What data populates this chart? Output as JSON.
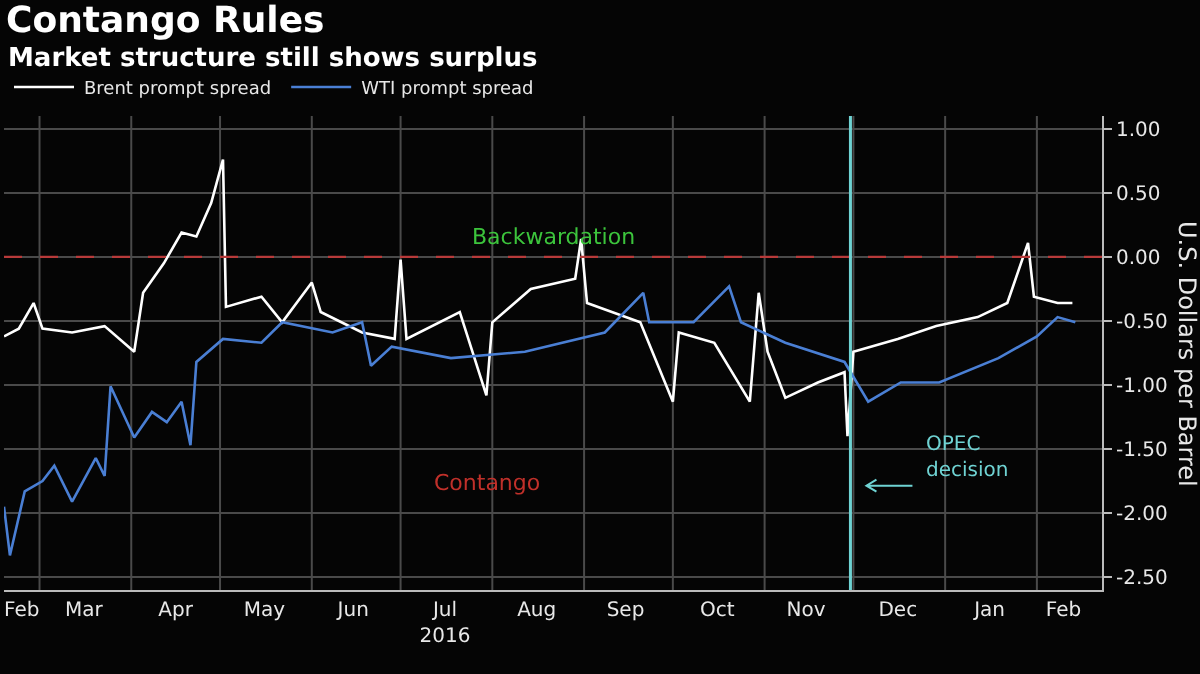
{
  "chart_data": {
    "type": "line",
    "title": "Contango Rules",
    "subtitle": "Market structure still shows surplus",
    "ylabel": "U.S. Dollars per Barrel",
    "annotations": [
      "Backwardation",
      "Contango"
    ],
    "xlim": [
      "2016-02-18",
      "2017-02-23"
    ],
    "xticks": [
      {
        "value": "2016-02-24",
        "label": "Feb"
      },
      {
        "value": "2016-03-01",
        "label": null
      },
      {
        "value": "2016-03-16",
        "label": "Mar"
      },
      {
        "value": "2016-04-01",
        "label": null
      },
      {
        "value": "2016-04-16",
        "label": "Apr"
      },
      {
        "value": "2016-05-01",
        "label": null
      },
      {
        "value": "2016-05-16",
        "label": "May"
      },
      {
        "value": "2016-06-01",
        "label": null
      },
      {
        "value": "2016-06-15",
        "label": "Jun"
      },
      {
        "value": "2016-07-01",
        "label": null
      },
      {
        "value": "2016-07-16",
        "label": "Jul\n2016"
      },
      {
        "value": "2016-08-01",
        "label": null
      },
      {
        "value": "2016-08-16",
        "label": "Aug"
      },
      {
        "value": "2016-09-01",
        "label": null
      },
      {
        "value": "2016-09-15",
        "label": "Sep"
      },
      {
        "value": "2016-10-01",
        "label": null
      },
      {
        "value": "2016-10-16",
        "label": "Oct"
      },
      {
        "value": "2016-11-01",
        "label": null
      },
      {
        "value": "2016-11-15",
        "label": "Nov"
      },
      {
        "value": "2016-12-01",
        "label": null
      },
      {
        "value": "2016-12-16",
        "label": "Dec"
      },
      {
        "value": "2017-01-01",
        "label": null
      },
      {
        "value": "2017-01-16",
        "label": "Jan"
      },
      {
        "value": "2017-02-01",
        "label": null
      },
      {
        "value": "2017-02-10",
        "label": "Feb"
      }
    ],
    "ylim": [
      -2.6,
      1.1
    ],
    "yticks": [
      {
        "value": 1,
        "label": "1.00"
      },
      {
        "value": 0.5,
        "label": "0.50"
      },
      {
        "value": 0,
        "label": "0.00"
      },
      {
        "value": -0.5,
        "label": "-0.50"
      },
      {
        "value": -1,
        "label": "-1.00"
      },
      {
        "value": -1.5,
        "label": "-1.50"
      },
      {
        "value": -2,
        "label": "-2.00"
      },
      {
        "value": -2.5,
        "label": "-2.50"
      }
    ],
    "grid": true,
    "legend": "top left",
    "marker": "none",
    "line_style": "solid",
    "ref_lines": [
      {
        "axis": "y",
        "value": 0,
        "color": "#b83a3a",
        "line_style": "dashed"
      },
      {
        "axis": "x",
        "value": "2016-11-30",
        "label": "OPEC\ndecision",
        "color": "#6fd3d3"
      }
    ],
    "series": [
      {
        "name": "Brent prompt spread",
        "color": "#ffffff",
        "x": [
          "2016-02-18",
          "2016-02-23",
          "2016-02-28",
          "2016-03-02",
          "2016-03-12",
          "2016-03-23",
          "2016-04-02",
          "2016-04-05",
          "2016-04-12",
          "2016-04-18",
          "2016-04-23",
          "2016-04-28",
          "2016-05-02",
          "2016-05-03",
          "2016-05-15",
          "2016-05-22",
          "2016-06-01",
          "2016-06-04",
          "2016-06-18",
          "2016-06-29",
          "2016-07-01",
          "2016-07-03",
          "2016-07-21",
          "2016-07-30",
          "2016-08-01",
          "2016-08-14",
          "2016-08-29",
          "2016-08-31",
          "2016-09-02",
          "2016-09-20",
          "2016-10-01",
          "2016-10-03",
          "2016-10-15",
          "2016-10-27",
          "2016-10-30",
          "2016-11-02",
          "2016-11-08",
          "2016-11-19",
          "2016-11-28",
          "2016-11-29",
          "2016-12-01",
          "2016-12-16",
          "2016-12-29",
          "2017-01-12",
          "2017-01-22",
          "2017-01-29",
          "2017-01-31",
          "2017-02-08",
          "2017-02-13"
        ],
        "values": [
          -0.62,
          -0.56,
          -0.36,
          -0.56,
          -0.59,
          -0.54,
          -0.74,
          -0.28,
          -0.05,
          0.19,
          0.16,
          0.42,
          0.76,
          -0.39,
          -0.31,
          -0.51,
          -0.2,
          -0.43,
          -0.59,
          -0.64,
          -0.02,
          -0.64,
          -0.43,
          -1.08,
          -0.51,
          -0.25,
          -0.17,
          0.14,
          -0.36,
          -0.51,
          -1.13,
          -0.59,
          -0.67,
          -1.13,
          -0.28,
          -0.74,
          -1.1,
          -0.98,
          -0.9,
          -1.4,
          -0.74,
          -0.64,
          -0.54,
          -0.47,
          -0.36,
          0.11,
          -0.31,
          -0.36,
          -0.36
        ]
      },
      {
        "name": "WTI prompt spread",
        "color": "#4a7fd4",
        "x": [
          "2016-02-18",
          "2016-02-20",
          "2016-02-25",
          "2016-03-02",
          "2016-03-06",
          "2016-03-12",
          "2016-03-20",
          "2016-03-23",
          "2016-03-25",
          "2016-04-02",
          "2016-04-08",
          "2016-04-13",
          "2016-04-18",
          "2016-04-21",
          "2016-04-23",
          "2016-05-02",
          "2016-05-15",
          "2016-05-22",
          "2016-06-08",
          "2016-06-18",
          "2016-06-21",
          "2016-06-28",
          "2016-07-18",
          "2016-08-12",
          "2016-09-08",
          "2016-09-21",
          "2016-09-23",
          "2016-10-08",
          "2016-10-20",
          "2016-10-24",
          "2016-11-08",
          "2016-11-28",
          "2016-12-06",
          "2016-12-17",
          "2016-12-30",
          "2017-01-19",
          "2017-02-01",
          "2017-02-08",
          "2017-02-14"
        ],
        "values": [
          -1.95,
          -2.33,
          -1.83,
          -1.75,
          -1.63,
          -1.91,
          -1.57,
          -1.71,
          -1.01,
          -1.41,
          -1.21,
          -1.29,
          -1.13,
          -1.47,
          -0.82,
          -0.64,
          -0.67,
          -0.51,
          -0.59,
          -0.51,
          -0.85,
          -0.7,
          -0.79,
          -0.74,
          -0.59,
          -0.28,
          -0.51,
          -0.51,
          -0.23,
          -0.51,
          -0.67,
          -0.82,
          -1.13,
          -0.98,
          -0.98,
          -0.79,
          -0.62,
          -0.47,
          -0.51
        ]
      }
    ]
  }
}
